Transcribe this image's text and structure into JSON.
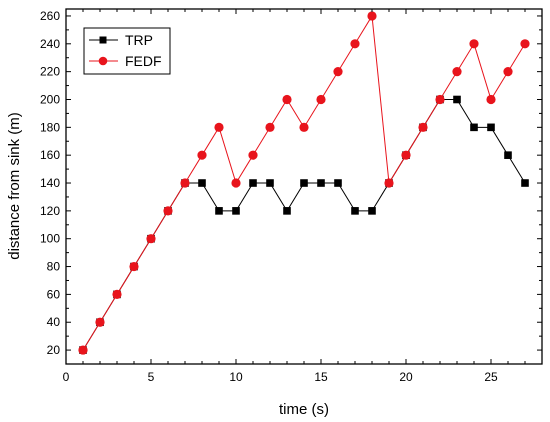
{
  "chart_data": {
    "type": "line",
    "title": "",
    "xlabel": "time (s)",
    "ylabel": "distance from sink (m)",
    "xlim": [
      0,
      28
    ],
    "ylim": [
      10,
      265
    ],
    "xticks": [
      0,
      5,
      10,
      15,
      20,
      25
    ],
    "yticks": [
      20,
      40,
      60,
      80,
      100,
      120,
      140,
      160,
      180,
      200,
      220,
      240,
      260
    ],
    "grid": false,
    "legend_position": "top-left",
    "x": [
      1,
      2,
      3,
      4,
      5,
      6,
      7,
      8,
      9,
      10,
      11,
      12,
      13,
      14,
      15,
      16,
      17,
      18,
      19,
      20,
      21,
      22,
      23,
      24,
      25,
      26,
      27
    ],
    "series": [
      {
        "name": "TRP",
        "color": "#000000",
        "marker": "square",
        "values": [
          20,
          40,
          60,
          80,
          100,
          120,
          140,
          140,
          120,
          120,
          140,
          140,
          120,
          140,
          140,
          140,
          120,
          120,
          140,
          160,
          180,
          200,
          200,
          180,
          180,
          160,
          140
        ]
      },
      {
        "name": "FEDF",
        "color": "#e8141c",
        "marker": "circle",
        "values": [
          20,
          40,
          60,
          80,
          100,
          120,
          140,
          160,
          180,
          140,
          160,
          180,
          200,
          180,
          200,
          220,
          240,
          260,
          140,
          160,
          180,
          200,
          220,
          240,
          200,
          220,
          240
        ]
      }
    ]
  }
}
